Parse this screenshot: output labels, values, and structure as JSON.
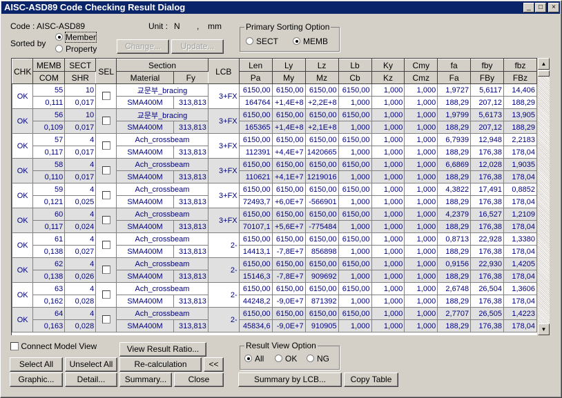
{
  "window": {
    "title": "AISC-ASD89 Code Checking Result Dialog",
    "min": "_",
    "max": "□",
    "close": "×"
  },
  "header": {
    "code": "Code : AISC-ASD89",
    "unit_label": "Unit :",
    "unit_force": "N",
    "unit_sep": ",",
    "unit_length": "mm",
    "sorted_by": "Sorted by",
    "sort_member": "Member",
    "sort_property": "Property",
    "change": "Change...",
    "update": "Update..."
  },
  "sorting": {
    "title": "Primary Sorting Option",
    "sect": "SECT",
    "memb": "MEMB",
    "selected": "MEMB"
  },
  "table": {
    "headers_top": [
      "CHK",
      "MEMB",
      "SECT",
      "SEL",
      "Section",
      "LCB",
      "Len",
      "Ly",
      "Lz",
      "Lb",
      "Ky",
      "Cmy",
      "fa",
      "fby",
      "fbz"
    ],
    "headers_bottom": [
      "COM",
      "SHR",
      "Material",
      "Fy",
      "Pa",
      "My",
      "Mz",
      "Cb",
      "Kz",
      "Cmz",
      "Fa",
      "FBy",
      "FBz"
    ],
    "rows": [
      {
        "chk": "OK",
        "memb": "55",
        "com": "0,111",
        "sect": "10",
        "shr": "0,017",
        "section": "교문부_bracing",
        "material": "SMA400M",
        "fy": "313,813",
        "lcb": "3+FX",
        "top": [
          "6150,00",
          "6150,00",
          "6150,00",
          "6150,00",
          "1,000",
          "1,000",
          "1,9727",
          "5,6117",
          "14,406"
        ],
        "bottom": [
          "164764",
          "+1,4E+8",
          "+2,2E+8",
          "1,000",
          "1,000",
          "1,000",
          "188,29",
          "207,12",
          "188,29"
        ]
      },
      {
        "chk": "OK",
        "memb": "56",
        "com": "0,109",
        "sect": "10",
        "shr": "0,017",
        "section": "교문부_bracing",
        "material": "SMA400M",
        "fy": "313,813",
        "lcb": "3+FX",
        "top": [
          "6150,00",
          "6150,00",
          "6150,00",
          "6150,00",
          "1,000",
          "1,000",
          "1,9799",
          "5,6173",
          "13,905"
        ],
        "bottom": [
          "165365",
          "+1,4E+8",
          "+2,1E+8",
          "1,000",
          "1,000",
          "1,000",
          "188,29",
          "207,12",
          "188,29"
        ]
      },
      {
        "chk": "OK",
        "memb": "57",
        "com": "0,117",
        "sect": "4",
        "shr": "0,017",
        "section": "Ach_crossbeam",
        "material": "SMA400M",
        "fy": "313,813",
        "lcb": "3+FX",
        "top": [
          "6150,00",
          "6150,00",
          "6150,00",
          "6150,00",
          "1,000",
          "1,000",
          "6,7939",
          "12,948",
          "2,2183"
        ],
        "bottom": [
          "112391",
          "+4,4E+7",
          "1420665",
          "1,000",
          "1,000",
          "1,000",
          "188,29",
          "176,38",
          "178,04"
        ]
      },
      {
        "chk": "OK",
        "memb": "58",
        "com": "0,110",
        "sect": "4",
        "shr": "0,017",
        "section": "Ach_crossbeam",
        "material": "SMA400M",
        "fy": "313,813",
        "lcb": "3+FX",
        "top": [
          "6150,00",
          "6150,00",
          "6150,00",
          "6150,00",
          "1,000",
          "1,000",
          "6,6869",
          "12,028",
          "1,9035"
        ],
        "bottom": [
          "110621",
          "+4,1E+7",
          "1219016",
          "1,000",
          "1,000",
          "1,000",
          "188,29",
          "176,38",
          "178,04"
        ]
      },
      {
        "chk": "OK",
        "memb": "59",
        "com": "0,121",
        "sect": "4",
        "shr": "0,025",
        "section": "Ach_crossbeam",
        "material": "SMA400M",
        "fy": "313,813",
        "lcb": "3+FX",
        "top": [
          "6150,00",
          "6150,00",
          "6150,00",
          "6150,00",
          "1,000",
          "1,000",
          "4,3822",
          "17,491",
          "0,8852"
        ],
        "bottom": [
          "72493,7",
          "+6,0E+7",
          "-566901",
          "1,000",
          "1,000",
          "1,000",
          "188,29",
          "176,38",
          "178,04"
        ]
      },
      {
        "chk": "OK",
        "memb": "60",
        "com": "0,117",
        "sect": "4",
        "shr": "0,024",
        "section": "Ach_crossbeam",
        "material": "SMA400M",
        "fy": "313,813",
        "lcb": "3+FX",
        "top": [
          "6150,00",
          "6150,00",
          "6150,00",
          "6150,00",
          "1,000",
          "1,000",
          "4,2379",
          "16,527",
          "1,2109"
        ],
        "bottom": [
          "70107,1",
          "+5,6E+7",
          "-775484",
          "1,000",
          "1,000",
          "1,000",
          "188,29",
          "176,38",
          "178,04"
        ]
      },
      {
        "chk": "OK",
        "memb": "61",
        "com": "0,138",
        "sect": "4",
        "shr": "0,027",
        "section": "Ach_crossbeam",
        "material": "SMA400M",
        "fy": "313,813",
        "lcb": "2-",
        "top": [
          "6150,00",
          "6150,00",
          "6150,00",
          "6150,00",
          "1,000",
          "1,000",
          "0,8713",
          "22,928",
          "1,3380"
        ],
        "bottom": [
          "14413,1",
          "-7,8E+7",
          "856898",
          "1,000",
          "1,000",
          "1,000",
          "188,29",
          "176,38",
          "178,04"
        ]
      },
      {
        "chk": "OK",
        "memb": "62",
        "com": "0,138",
        "sect": "4",
        "shr": "0,026",
        "section": "Ach_crossbeam",
        "material": "SMA400M",
        "fy": "313,813",
        "lcb": "2-",
        "top": [
          "6150,00",
          "6150,00",
          "6150,00",
          "6150,00",
          "1,000",
          "1,000",
          "0,9156",
          "22,930",
          "1,4205"
        ],
        "bottom": [
          "15146,3",
          "-7,8E+7",
          "909692",
          "1,000",
          "1,000",
          "1,000",
          "188,29",
          "176,38",
          "178,04"
        ]
      },
      {
        "chk": "OK",
        "memb": "63",
        "com": "0,162",
        "sect": "4",
        "shr": "0,028",
        "section": "Ach_crossbeam",
        "material": "SMA400M",
        "fy": "313,813",
        "lcb": "2-",
        "top": [
          "6150,00",
          "6150,00",
          "6150,00",
          "6150,00",
          "1,000",
          "1,000",
          "2,6748",
          "26,504",
          "1,3606"
        ],
        "bottom": [
          "44248,2",
          "-9,0E+7",
          "871392",
          "1,000",
          "1,000",
          "1,000",
          "188,29",
          "176,38",
          "178,04"
        ]
      },
      {
        "chk": "OK",
        "memb": "64",
        "com": "0,163",
        "sect": "4",
        "shr": "0,028",
        "section": "Ach_crossbeam",
        "material": "SMA400M",
        "fy": "313,813",
        "lcb": "2-",
        "top": [
          "6150,00",
          "6150,00",
          "6150,00",
          "6150,00",
          "1,000",
          "1,000",
          "2,7707",
          "26,505",
          "1,4223"
        ],
        "bottom": [
          "45834,6",
          "-9,0E+7",
          "910905",
          "1,000",
          "1,000",
          "1,000",
          "188,29",
          "176,38",
          "178,04"
        ]
      }
    ]
  },
  "footer": {
    "connect_model_view": "Connect Model View",
    "view_result_ratio": "View Result Ratio...",
    "select_all": "Select All",
    "unselect_all": "Unselect All",
    "recalculation": "Re-calculation",
    "collapse": "<<",
    "graphic": "Graphic...",
    "detail": "Detail...",
    "summary": "Summary...",
    "close": "Close",
    "summary_by_lcb": "Summary by LCB...",
    "copy_table": "Copy Table"
  },
  "result_view": {
    "title": "Result View Option",
    "all": "All",
    "ok": "OK",
    "ng": "NG",
    "selected": "All"
  },
  "colors": {
    "title_bar": "#0a246a",
    "cell_text": "#000080",
    "alt_row": "#e0e0e0",
    "face": "#d4d0c8"
  }
}
